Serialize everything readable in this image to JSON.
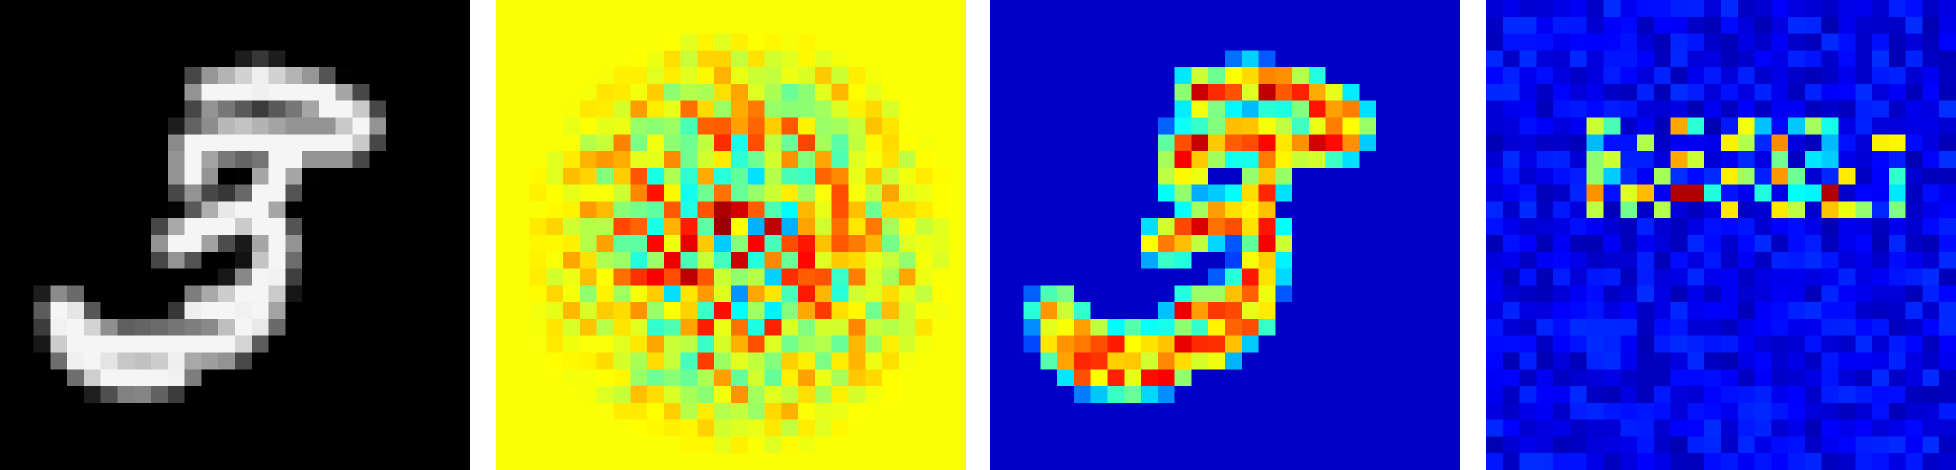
{
  "panels": [
    {
      "id": "panel-input",
      "kind": "grayscale-digit",
      "colormap": "gray",
      "background": "#000000",
      "depicts": "3"
    },
    {
      "id": "panel-signed",
      "kind": "signed-heatmap",
      "colormap": "jet",
      "background": "#a4f75c"
    },
    {
      "id": "panel-abs",
      "kind": "magnitude-heatmap",
      "colormap": "jet",
      "background": "#00007f"
    },
    {
      "id": "panel-noise",
      "kind": "noisy-heatmap",
      "colormap": "jet",
      "background": "#00008b"
    }
  ],
  "grid": {
    "rows": 28,
    "cols": 28
  },
  "colors": {
    "page_background": "#ffffff"
  }
}
